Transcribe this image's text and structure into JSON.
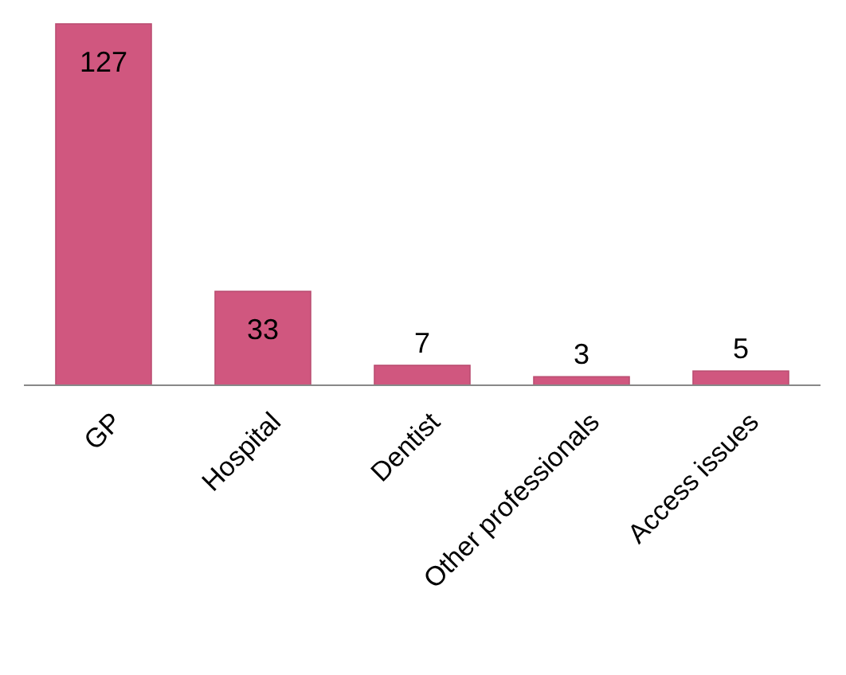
{
  "chart_data": {
    "type": "bar",
    "categories": [
      "GP",
      "Hospital",
      "Dentist",
      "Other professionals",
      "Access issues"
    ],
    "values": [
      127,
      33,
      7,
      3,
      5
    ],
    "color": "#d0577f",
    "data_labels": true
  }
}
